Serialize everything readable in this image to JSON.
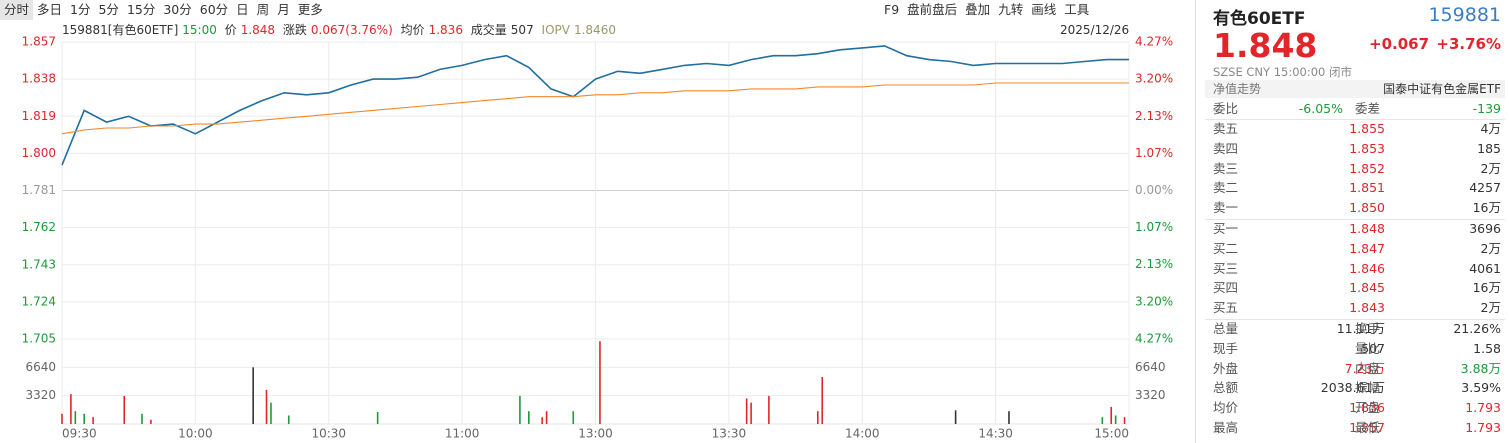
{
  "toolbar": {
    "tabs": [
      "分时",
      "多日",
      "1分",
      "5分",
      "15分",
      "30分",
      "60分",
      "日",
      "周",
      "月",
      "更多"
    ],
    "tools": [
      "F9",
      "盘前盘后",
      "叠加",
      "九转",
      "画线",
      "工具"
    ]
  },
  "quote_line": {
    "code_name": "159881[有色60ETF]",
    "time": "15:00",
    "price_label": "价",
    "price": "1.848",
    "change_label": "涨跌",
    "change": "0.067(3.76%)",
    "avg_label": "均价",
    "avg": "1.836",
    "volume_label": "成交量",
    "volume": "507",
    "iopv_label": "IOPV",
    "iopv": "1.8460",
    "date": "2025/12/26"
  },
  "chart_data": [
    {
      "type": "line",
      "x": [
        0,
        5,
        10,
        15,
        20,
        25,
        30,
        35,
        40,
        45,
        50,
        55,
        60,
        65,
        70,
        75,
        80,
        85,
        90,
        95,
        100,
        105,
        110,
        115,
        120,
        125,
        130,
        135,
        140,
        145,
        150,
        155,
        160,
        165,
        170,
        175,
        180,
        185,
        190,
        195,
        200,
        205,
        210,
        215,
        220,
        225,
        230,
        235,
        240
      ],
      "series": [
        {
          "color": "#1f6f9f",
          "values": [
            1.794,
            1.822,
            1.816,
            1.819,
            1.814,
            1.815,
            1.81,
            1.816,
            1.822,
            1.827,
            1.831,
            1.83,
            1.831,
            1.835,
            1.838,
            1.838,
            1.839,
            1.843,
            1.845,
            1.848,
            1.85,
            1.844,
            1.833,
            1.829,
            1.838,
            1.842,
            1.841,
            1.843,
            1.845,
            1.846,
            1.845,
            1.848,
            1.85,
            1.85,
            1.851,
            1.853,
            1.854,
            1.855,
            1.85,
            1.848,
            1.847,
            1.845,
            1.846,
            1.846,
            1.846,
            1.846,
            1.847,
            1.848,
            1.848
          ]
        },
        {
          "color": "#f0892a",
          "values": [
            1.81,
            1.812,
            1.813,
            1.813,
            1.814,
            1.814,
            1.815,
            1.815,
            1.816,
            1.817,
            1.818,
            1.819,
            1.82,
            1.821,
            1.822,
            1.823,
            1.824,
            1.825,
            1.826,
            1.827,
            1.828,
            1.829,
            1.829,
            1.829,
            1.83,
            1.83,
            1.831,
            1.831,
            1.832,
            1.832,
            1.832,
            1.833,
            1.833,
            1.833,
            1.834,
            1.834,
            1.834,
            1.835,
            1.835,
            1.835,
            1.835,
            1.835,
            1.836,
            1.836,
            1.836,
            1.836,
            1.836,
            1.836,
            1.836
          ]
        }
      ],
      "xlim": [
        0,
        240
      ],
      "xticks": [
        {
          "value": 0,
          "label": "09:30"
        },
        {
          "value": 30,
          "label": "10:00"
        },
        {
          "value": 60,
          "label": "10:30"
        },
        {
          "value": 90,
          "label": "11:00"
        },
        {
          "value": 120,
          "label": "13:00"
        },
        {
          "value": 150,
          "label": "13:30"
        },
        {
          "value": 180,
          "label": "14:00"
        },
        {
          "value": 210,
          "label": "14:30"
        },
        {
          "value": 240,
          "label": "15:00"
        }
      ],
      "ylim": [
        1.705,
        1.857
      ],
      "yticks": [
        1.857,
        1.838,
        1.819,
        {
          "value": 1.8,
          "label": "1.800"
        },
        1.781,
        1.762,
        1.743,
        1.724,
        1.705
      ],
      "y2lim": [
        -4.27,
        4.27
      ],
      "y2ticks": [
        {
          "value": 4.27,
          "label": "4.27%"
        },
        {
          "value": 3.2,
          "label": "3.20%"
        },
        {
          "value": 2.13,
          "label": "2.13%"
        },
        {
          "value": 1.07,
          "label": "1.07%"
        },
        {
          "value": 0,
          "label": "0.00%"
        },
        {
          "value": -1.07,
          "label": "1.07%"
        },
        {
          "value": -2.13,
          "label": "2.13%"
        },
        {
          "value": -3.2,
          "label": "3.20%"
        },
        {
          "value": -4.27,
          "label": "4.27%"
        }
      ],
      "grid": true
    },
    {
      "type": "bar",
      "x": [
        0,
        2,
        3,
        5,
        7,
        14,
        18,
        20,
        43,
        46,
        47,
        51,
        71,
        103,
        105,
        108,
        109,
        115,
        121,
        154,
        155,
        159,
        170,
        171,
        201,
        213,
        234,
        236,
        237,
        239
      ],
      "values": [
        1200,
        3500,
        1500,
        1200,
        800,
        3300,
        1200,
        500,
        6640,
        4000,
        2500,
        1000,
        1400,
        3300,
        1500,
        800,
        1500,
        1500,
        9700,
        3000,
        2500,
        3300,
        1500,
        5500,
        1600,
        1500,
        800,
        2000,
        1000,
        800
      ],
      "colors": [
        "#e0262b",
        "#e0262b",
        "#1c9a3a",
        "#1c9a3a",
        "#e0262b",
        "#e0262b",
        "#1c9a3a",
        "#e0262b",
        "#333333",
        "#e0262b",
        "#1c9a3a",
        "#1c9a3a",
        "#1c9a3a",
        "#1c9a3a",
        "#1c9a3a",
        "#e0262b",
        "#e0262b",
        "#1c9a3a",
        "#e0262b",
        "#e0262b",
        "#e0262b",
        "#e0262b",
        "#e0262b",
        "#e0262b",
        "#333333",
        "#333333",
        "#1c9a3a",
        "#e0262b",
        "#1c9a3a",
        "#e0262b"
      ],
      "ylim": [
        0,
        9960
      ],
      "yticks": [
        3320,
        6640
      ]
    }
  ],
  "panel": {
    "name": "有色60ETF",
    "code": "159881",
    "price": "1.848",
    "change": "+0.067",
    "pct": "+3.76%",
    "status": "SZSE  CNY  15:00:00  闭市",
    "nav_label": "净值走势",
    "index_name": "国泰中证有色金属ETF",
    "ratio": {
      "label": "委比",
      "value": "-6.05%",
      "diff_label": "委差",
      "diff": "-139"
    },
    "asks": [
      {
        "label": "卖五",
        "price": "1.855",
        "volume": "4万"
      },
      {
        "label": "卖四",
        "price": "1.853",
        "volume": "185"
      },
      {
        "label": "卖三",
        "price": "1.852",
        "volume": "2万"
      },
      {
        "label": "卖二",
        "price": "1.851",
        "volume": "4257"
      },
      {
        "label": "卖一",
        "price": "1.850",
        "volume": "16万"
      }
    ],
    "bids": [
      {
        "label": "买一",
        "price": "1.848",
        "volume": "3696"
      },
      {
        "label": "买二",
        "price": "1.847",
        "volume": "2万"
      },
      {
        "label": "买三",
        "price": "1.846",
        "volume": "4061"
      },
      {
        "label": "买四",
        "price": "1.845",
        "volume": "16万"
      },
      {
        "label": "买五",
        "price": "1.843",
        "volume": "2万"
      }
    ],
    "stats": [
      [
        {
          "label": "总量",
          "value": "11.11万",
          "color": "#333333"
        },
        {
          "label": "换手",
          "value": "21.26%",
          "color": "#333333"
        }
      ],
      [
        {
          "label": "现手",
          "value": "507",
          "color": "#333333"
        },
        {
          "label": "量比",
          "value": "1.58",
          "color": "#333333"
        }
      ],
      [
        {
          "label": "外盘",
          "value": "7.23万",
          "color": "#e0262b"
        },
        {
          "label": "内盘",
          "value": "3.88万",
          "color": "#1c9a3a"
        }
      ],
      [
        {
          "label": "总额",
          "value": "2038.61万",
          "color": "#333333"
        },
        {
          "label": "振幅",
          "value": "3.59%",
          "color": "#333333"
        }
      ],
      [
        {
          "label": "均价",
          "value": "1.836",
          "color": "#e0262b"
        },
        {
          "label": "开盘",
          "value": "1.793",
          "color": "#e0262b"
        }
      ],
      [
        {
          "label": "最高",
          "value": "1.857",
          "color": "#e0262b"
        },
        {
          "label": "最低",
          "value": "1.793",
          "color": "#e0262b"
        }
      ]
    ]
  }
}
